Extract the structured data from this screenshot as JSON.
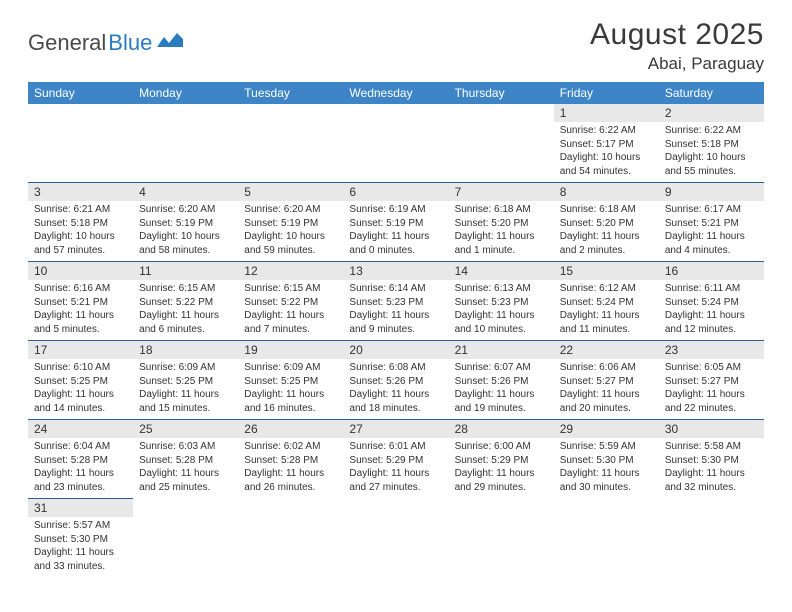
{
  "logo": {
    "part1": "General",
    "part2": "Blue"
  },
  "header": {
    "title": "August 2025",
    "location": "Abai, Paraguay"
  },
  "colors": {
    "header_bg": "#3d85c6",
    "daynum_bg": "#e8e8e8",
    "border": "#2b5f8f",
    "text": "#333333",
    "logo_blue": "#2b7bbf"
  },
  "daynames": [
    "Sunday",
    "Monday",
    "Tuesday",
    "Wednesday",
    "Thursday",
    "Friday",
    "Saturday"
  ],
  "weeks": [
    [
      null,
      null,
      null,
      null,
      null,
      {
        "n": "1",
        "sr": "Sunrise: 6:22 AM",
        "ss": "Sunset: 5:17 PM",
        "dl1": "Daylight: 10 hours",
        "dl2": "and 54 minutes."
      },
      {
        "n": "2",
        "sr": "Sunrise: 6:22 AM",
        "ss": "Sunset: 5:18 PM",
        "dl1": "Daylight: 10 hours",
        "dl2": "and 55 minutes."
      }
    ],
    [
      {
        "n": "3",
        "sr": "Sunrise: 6:21 AM",
        "ss": "Sunset: 5:18 PM",
        "dl1": "Daylight: 10 hours",
        "dl2": "and 57 minutes."
      },
      {
        "n": "4",
        "sr": "Sunrise: 6:20 AM",
        "ss": "Sunset: 5:19 PM",
        "dl1": "Daylight: 10 hours",
        "dl2": "and 58 minutes."
      },
      {
        "n": "5",
        "sr": "Sunrise: 6:20 AM",
        "ss": "Sunset: 5:19 PM",
        "dl1": "Daylight: 10 hours",
        "dl2": "and 59 minutes."
      },
      {
        "n": "6",
        "sr": "Sunrise: 6:19 AM",
        "ss": "Sunset: 5:19 PM",
        "dl1": "Daylight: 11 hours",
        "dl2": "and 0 minutes."
      },
      {
        "n": "7",
        "sr": "Sunrise: 6:18 AM",
        "ss": "Sunset: 5:20 PM",
        "dl1": "Daylight: 11 hours",
        "dl2": "and 1 minute."
      },
      {
        "n": "8",
        "sr": "Sunrise: 6:18 AM",
        "ss": "Sunset: 5:20 PM",
        "dl1": "Daylight: 11 hours",
        "dl2": "and 2 minutes."
      },
      {
        "n": "9",
        "sr": "Sunrise: 6:17 AM",
        "ss": "Sunset: 5:21 PM",
        "dl1": "Daylight: 11 hours",
        "dl2": "and 4 minutes."
      }
    ],
    [
      {
        "n": "10",
        "sr": "Sunrise: 6:16 AM",
        "ss": "Sunset: 5:21 PM",
        "dl1": "Daylight: 11 hours",
        "dl2": "and 5 minutes."
      },
      {
        "n": "11",
        "sr": "Sunrise: 6:15 AM",
        "ss": "Sunset: 5:22 PM",
        "dl1": "Daylight: 11 hours",
        "dl2": "and 6 minutes."
      },
      {
        "n": "12",
        "sr": "Sunrise: 6:15 AM",
        "ss": "Sunset: 5:22 PM",
        "dl1": "Daylight: 11 hours",
        "dl2": "and 7 minutes."
      },
      {
        "n": "13",
        "sr": "Sunrise: 6:14 AM",
        "ss": "Sunset: 5:23 PM",
        "dl1": "Daylight: 11 hours",
        "dl2": "and 9 minutes."
      },
      {
        "n": "14",
        "sr": "Sunrise: 6:13 AM",
        "ss": "Sunset: 5:23 PM",
        "dl1": "Daylight: 11 hours",
        "dl2": "and 10 minutes."
      },
      {
        "n": "15",
        "sr": "Sunrise: 6:12 AM",
        "ss": "Sunset: 5:24 PM",
        "dl1": "Daylight: 11 hours",
        "dl2": "and 11 minutes."
      },
      {
        "n": "16",
        "sr": "Sunrise: 6:11 AM",
        "ss": "Sunset: 5:24 PM",
        "dl1": "Daylight: 11 hours",
        "dl2": "and 12 minutes."
      }
    ],
    [
      {
        "n": "17",
        "sr": "Sunrise: 6:10 AM",
        "ss": "Sunset: 5:25 PM",
        "dl1": "Daylight: 11 hours",
        "dl2": "and 14 minutes."
      },
      {
        "n": "18",
        "sr": "Sunrise: 6:09 AM",
        "ss": "Sunset: 5:25 PM",
        "dl1": "Daylight: 11 hours",
        "dl2": "and 15 minutes."
      },
      {
        "n": "19",
        "sr": "Sunrise: 6:09 AM",
        "ss": "Sunset: 5:25 PM",
        "dl1": "Daylight: 11 hours",
        "dl2": "and 16 minutes."
      },
      {
        "n": "20",
        "sr": "Sunrise: 6:08 AM",
        "ss": "Sunset: 5:26 PM",
        "dl1": "Daylight: 11 hours",
        "dl2": "and 18 minutes."
      },
      {
        "n": "21",
        "sr": "Sunrise: 6:07 AM",
        "ss": "Sunset: 5:26 PM",
        "dl1": "Daylight: 11 hours",
        "dl2": "and 19 minutes."
      },
      {
        "n": "22",
        "sr": "Sunrise: 6:06 AM",
        "ss": "Sunset: 5:27 PM",
        "dl1": "Daylight: 11 hours",
        "dl2": "and 20 minutes."
      },
      {
        "n": "23",
        "sr": "Sunrise: 6:05 AM",
        "ss": "Sunset: 5:27 PM",
        "dl1": "Daylight: 11 hours",
        "dl2": "and 22 minutes."
      }
    ],
    [
      {
        "n": "24",
        "sr": "Sunrise: 6:04 AM",
        "ss": "Sunset: 5:28 PM",
        "dl1": "Daylight: 11 hours",
        "dl2": "and 23 minutes."
      },
      {
        "n": "25",
        "sr": "Sunrise: 6:03 AM",
        "ss": "Sunset: 5:28 PM",
        "dl1": "Daylight: 11 hours",
        "dl2": "and 25 minutes."
      },
      {
        "n": "26",
        "sr": "Sunrise: 6:02 AM",
        "ss": "Sunset: 5:28 PM",
        "dl1": "Daylight: 11 hours",
        "dl2": "and 26 minutes."
      },
      {
        "n": "27",
        "sr": "Sunrise: 6:01 AM",
        "ss": "Sunset: 5:29 PM",
        "dl1": "Daylight: 11 hours",
        "dl2": "and 27 minutes."
      },
      {
        "n": "28",
        "sr": "Sunrise: 6:00 AM",
        "ss": "Sunset: 5:29 PM",
        "dl1": "Daylight: 11 hours",
        "dl2": "and 29 minutes."
      },
      {
        "n": "29",
        "sr": "Sunrise: 5:59 AM",
        "ss": "Sunset: 5:30 PM",
        "dl1": "Daylight: 11 hours",
        "dl2": "and 30 minutes."
      },
      {
        "n": "30",
        "sr": "Sunrise: 5:58 AM",
        "ss": "Sunset: 5:30 PM",
        "dl1": "Daylight: 11 hours",
        "dl2": "and 32 minutes."
      }
    ],
    [
      {
        "n": "31",
        "sr": "Sunrise: 5:57 AM",
        "ss": "Sunset: 5:30 PM",
        "dl1": "Daylight: 11 hours",
        "dl2": "and 33 minutes."
      },
      null,
      null,
      null,
      null,
      null,
      null
    ]
  ]
}
